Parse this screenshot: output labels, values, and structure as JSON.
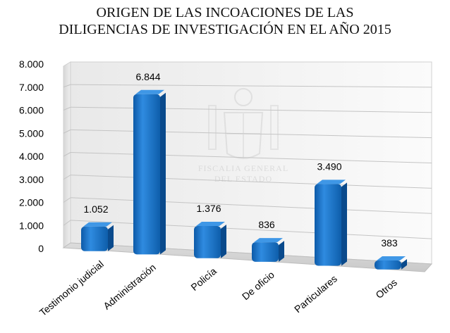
{
  "chart_data": {
    "type": "bar",
    "title_lines": [
      "ORIGEN DE LAS INCOACIONES DE LAS",
      "DILIGENCIAS DE INVESTIGACIÓN EN EL AÑO 2015"
    ],
    "categories": [
      "Testimonio judicial",
      "Administración",
      "Policía",
      "De oficio",
      "Particulares",
      "Otros"
    ],
    "values": [
      1052,
      6844,
      1376,
      836,
      3490,
      383
    ],
    "value_labels": [
      "1.052",
      "6.844",
      "1.376",
      "836",
      "3.490",
      "383"
    ],
    "y_ticks": [
      0,
      1000,
      2000,
      3000,
      4000,
      5000,
      6000,
      7000,
      8000
    ],
    "y_tick_labels": [
      "0",
      "1.000",
      "2.000",
      "3.000",
      "4.000",
      "5.000",
      "6.000",
      "7.000",
      "8.000"
    ],
    "ylim": [
      0,
      8000
    ],
    "grid": true,
    "legend": false,
    "bar_color": "#1e73c8",
    "watermark_lines": [
      "FISCALIA GENERAL",
      "DEL ESTADO"
    ]
  }
}
